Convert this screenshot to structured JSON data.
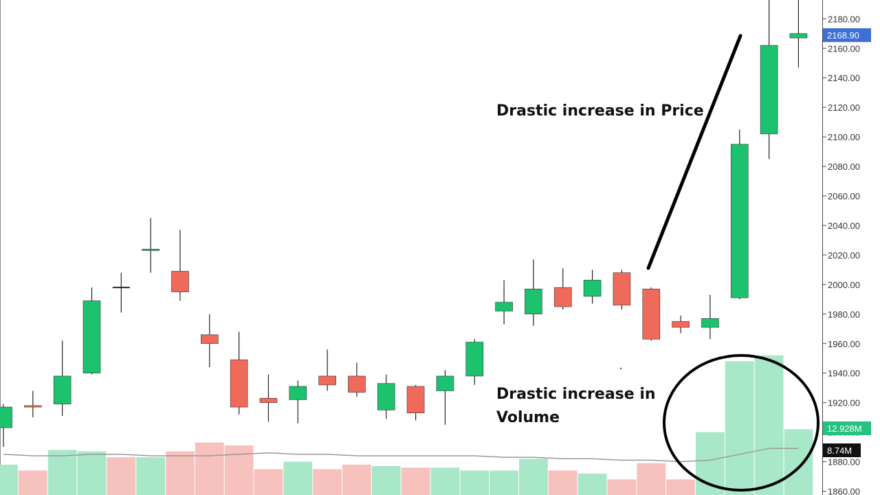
{
  "chart_data": {
    "type": "candlestick",
    "price_axis": {
      "ylim": [
        1855,
        2193
      ],
      "tick_labels": [
        "1860.00",
        "1880.00",
        "1900.00",
        "1920.00",
        "1940.00",
        "1960.00",
        "1980.00",
        "2000.00",
        "2020.00",
        "2040.00",
        "2060.00",
        "2080.00",
        "2100.00",
        "2120.00",
        "2140.00",
        "2160.00",
        "2180.00"
      ],
      "ticks": [
        1860,
        1880,
        1900,
        1920,
        1940,
        1960,
        1980,
        2000,
        2020,
        2040,
        2060,
        2080,
        2100,
        2120,
        2140,
        2160,
        2180
      ]
    },
    "current_price": {
      "value": 2168.9,
      "label": "2168.90",
      "color": "#3d6fd6"
    },
    "volume_labels": [
      {
        "label": "12.928M",
        "color": "#26c281"
      },
      {
        "label": "8.74M",
        "color": "#111111"
      }
    ],
    "colors": {
      "up": "#1dc26e",
      "down": "#f06a5c",
      "vol_up": "#a8e8c8",
      "vol_down": "#f7c2be",
      "wick": "#222222",
      "ma": "#999999"
    },
    "candles": [
      {
        "o": 1903,
        "c": 1917,
        "h": 1919,
        "l": 1890
      },
      {
        "o": 1918,
        "c": 1917,
        "h": 1928,
        "l": 1910
      },
      {
        "o": 1919,
        "c": 1938,
        "h": 1962,
        "l": 1911
      },
      {
        "o": 1940,
        "c": 1989,
        "h": 1998,
        "l": 1939
      },
      {
        "o": 1998,
        "c": 1998,
        "h": 2008,
        "l": 1981
      },
      {
        "o": 2023,
        "c": 2024,
        "h": 2045,
        "l": 2008
      },
      {
        "o": 2009,
        "c": 1995,
        "h": 2037,
        "l": 1989
      },
      {
        "o": 1966,
        "c": 1960,
        "h": 1980,
        "l": 1944
      },
      {
        "o": 1949,
        "c": 1917,
        "h": 1968,
        "l": 1912
      },
      {
        "o": 1923,
        "c": 1920,
        "h": 1939,
        "l": 1907
      },
      {
        "o": 1922,
        "c": 1931,
        "h": 1935,
        "l": 1906
      },
      {
        "o": 1938,
        "c": 1932,
        "h": 1956,
        "l": 1928
      },
      {
        "o": 1938,
        "c": 1927,
        "h": 1947,
        "l": 1924
      },
      {
        "o": 1915,
        "c": 1933,
        "h": 1939,
        "l": 1909
      },
      {
        "o": 1931,
        "c": 1913,
        "h": 1932,
        "l": 1908
      },
      {
        "o": 1928,
        "c": 1938,
        "h": 1942,
        "l": 1905
      },
      {
        "o": 1938,
        "c": 1961,
        "h": 1963,
        "l": 1932
      },
      {
        "o": 1982,
        "c": 1988,
        "h": 2003,
        "l": 1973
      },
      {
        "o": 1980,
        "c": 1997,
        "h": 2017,
        "l": 1972
      },
      {
        "o": 1998,
        "c": 1985,
        "h": 2011,
        "l": 1983
      },
      {
        "o": 1992,
        "c": 2003,
        "h": 2010,
        "l": 1987
      },
      {
        "o": 2008,
        "c": 1986,
        "h": 2010,
        "l": 1983
      },
      {
        "o": 1997,
        "c": 1963,
        "h": 1998,
        "l": 1962
      },
      {
        "o": 1975,
        "c": 1971,
        "h": 1979,
        "l": 1967
      },
      {
        "o": 1971,
        "c": 1977,
        "h": 1993,
        "l": 1963
      },
      {
        "o": 1991,
        "c": 2095,
        "h": 2105,
        "l": 1990
      },
      {
        "o": 2102,
        "c": 2162,
        "h": 2193,
        "l": 2085
      },
      {
        "o": 2167,
        "c": 2170,
        "h": 2193,
        "l": 2147
      }
    ],
    "volume_bars": [
      {
        "dir": "up",
        "level": 1878
      },
      {
        "dir": "down",
        "level": 1874
      },
      {
        "dir": "up",
        "level": 1888
      },
      {
        "dir": "up",
        "level": 1887
      },
      {
        "dir": "down",
        "level": 1883
      },
      {
        "dir": "up",
        "level": 1883
      },
      {
        "dir": "down",
        "level": 1887
      },
      {
        "dir": "down",
        "level": 1893
      },
      {
        "dir": "down",
        "level": 1891
      },
      {
        "dir": "down",
        "level": 1875
      },
      {
        "dir": "up",
        "level": 1880
      },
      {
        "dir": "down",
        "level": 1875
      },
      {
        "dir": "down",
        "level": 1878
      },
      {
        "dir": "up",
        "level": 1877
      },
      {
        "dir": "down",
        "level": 1876
      },
      {
        "dir": "up",
        "level": 1876
      },
      {
        "dir": "up",
        "level": 1874
      },
      {
        "dir": "up",
        "level": 1874
      },
      {
        "dir": "up",
        "level": 1882
      },
      {
        "dir": "down",
        "level": 1874
      },
      {
        "dir": "up",
        "level": 1872
      },
      {
        "dir": "down",
        "level": 1868
      },
      {
        "dir": "down",
        "level": 1879
      },
      {
        "dir": "down",
        "level": 1868
      },
      {
        "dir": "up",
        "level": 1900
      },
      {
        "dir": "up",
        "level": 1948
      },
      {
        "dir": "up",
        "level": 1952
      },
      {
        "dir": "up",
        "level": 1902
      }
    ],
    "volume_ma": [
      1885,
      1884,
      1884,
      1885,
      1885,
      1884,
      1884,
      1884,
      1885,
      1886,
      1885,
      1885,
      1884,
      1884,
      1884,
      1884,
      1884,
      1883,
      1883,
      1882,
      1882,
      1881,
      1881,
      1880,
      1881,
      1885,
      1889,
      1889
    ]
  },
  "annotations": {
    "price": "Drastic increase in Price",
    "volume_line1": "Drastic increase in",
    "volume_line2": "Volume"
  }
}
